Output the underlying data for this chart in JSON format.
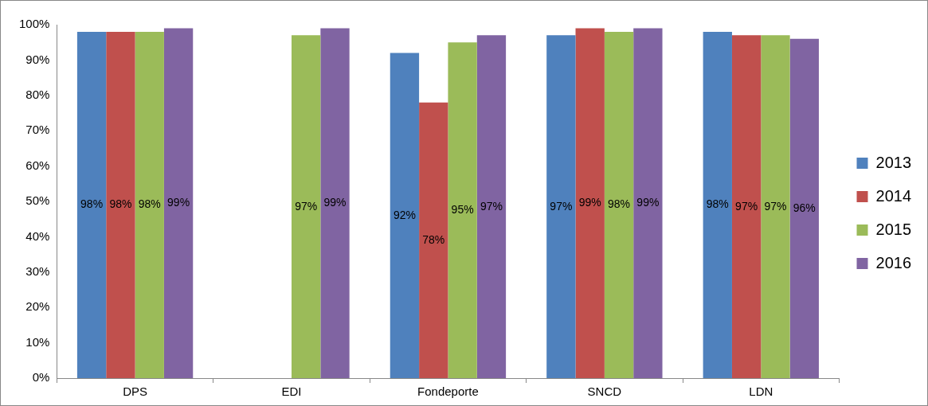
{
  "chart_data": {
    "type": "bar",
    "categories": [
      "DPS",
      "EDI",
      "Fondeporte",
      "SNCD",
      "LDN"
    ],
    "series": [
      {
        "name": "2013",
        "color": "#4f81bd",
        "values": [
          98,
          null,
          92,
          97,
          98
        ],
        "value_labels": [
          "98%",
          null,
          "92%",
          "97%",
          "98%"
        ]
      },
      {
        "name": "2014",
        "color": "#c0504d",
        "values": [
          98,
          null,
          78,
          99,
          97
        ],
        "value_labels": [
          "98%",
          null,
          "78%",
          "99%",
          "97%"
        ]
      },
      {
        "name": "2015",
        "color": "#9bbb59",
        "values": [
          98,
          97,
          95,
          98,
          97
        ],
        "value_labels": [
          "98%",
          "97%",
          "95%",
          "98%",
          "97%"
        ]
      },
      {
        "name": "2016",
        "color": "#8064a2",
        "values": [
          99,
          99,
          97,
          99,
          96
        ],
        "value_labels": [
          "99%",
          "99%",
          "97%",
          "99%",
          "96%"
        ]
      }
    ],
    "ylim": [
      0,
      100
    ],
    "yticks": [
      {
        "value": 0,
        "label": "0%"
      },
      {
        "value": 10,
        "label": "10%"
      },
      {
        "value": 20,
        "label": "20%"
      },
      {
        "value": 30,
        "label": "30%"
      },
      {
        "value": 40,
        "label": "40%"
      },
      {
        "value": 50,
        "label": "50%"
      },
      {
        "value": 60,
        "label": "60%"
      },
      {
        "value": 70,
        "label": "70%"
      },
      {
        "value": 80,
        "label": "80%"
      },
      {
        "value": 90,
        "label": "90%"
      },
      {
        "value": 100,
        "label": "100%"
      }
    ],
    "grid": false,
    "legend": "right"
  }
}
